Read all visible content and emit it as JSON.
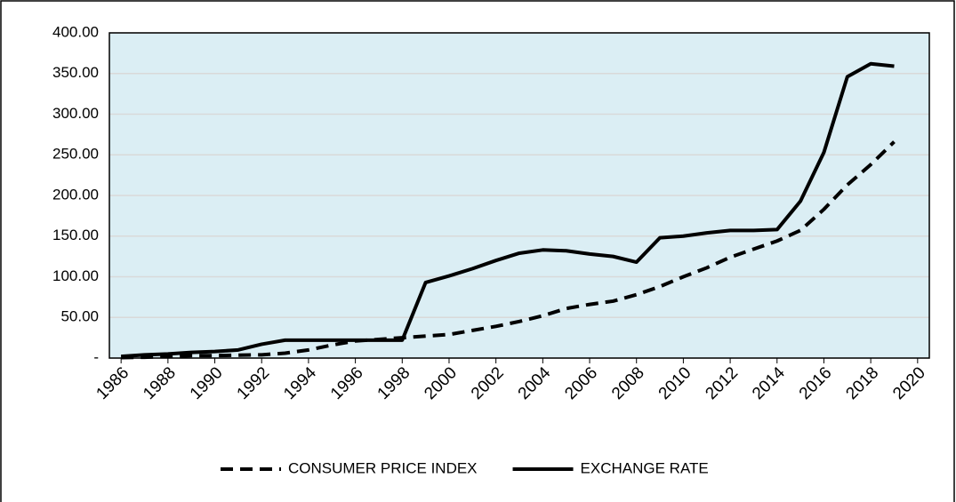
{
  "chart_data": {
    "type": "line",
    "x": [
      1986,
      1987,
      1988,
      1989,
      1990,
      1991,
      1992,
      1993,
      1994,
      1995,
      1996,
      1997,
      1998,
      1999,
      2000,
      2001,
      2002,
      2003,
      2004,
      2005,
      2006,
      2007,
      2008,
      2009,
      2010,
      2011,
      2012,
      2013,
      2014,
      2015,
      2016,
      2017,
      2018,
      2019
    ],
    "series": [
      {
        "name": "CONSUMER PRICE INDEX",
        "color": "#000000",
        "dash": true,
        "values": [
          0.5,
          1,
          2,
          3,
          3,
          3.5,
          4,
          6,
          10,
          16,
          21,
          23,
          25,
          27,
          29,
          34,
          39,
          45,
          52,
          61,
          66,
          70,
          78,
          88,
          100,
          111,
          124,
          134,
          144,
          157,
          183,
          213,
          238,
          266
        ]
      },
      {
        "name": "EXCHANGE RATE",
        "color": "#000000",
        "dash": false,
        "values": [
          2,
          4,
          5,
          7,
          8,
          10,
          17,
          22,
          22,
          22,
          22,
          22,
          22,
          93,
          101,
          110,
          120,
          129,
          133,
          132,
          128,
          125,
          118,
          148,
          150,
          154,
          157,
          157,
          158,
          193,
          253,
          346,
          362,
          359
        ]
      }
    ],
    "xlim": [
      1985.5,
      2020.5
    ],
    "xticks": [
      1986,
      1988,
      1990,
      1992,
      1994,
      1996,
      1998,
      2000,
      2002,
      2004,
      2006,
      2008,
      2010,
      2012,
      2014,
      2016,
      2018,
      2020
    ],
    "ylim": [
      0,
      400
    ],
    "yticks": [
      {
        "value": 0,
        "label": "-"
      },
      {
        "value": 50,
        "label": "50.00"
      },
      {
        "value": 100,
        "label": "100.00"
      },
      {
        "value": 150,
        "label": "150.00"
      },
      {
        "value": 200,
        "label": "200.00"
      },
      {
        "value": 250,
        "label": "250.00"
      },
      {
        "value": 300,
        "label": "300.00"
      },
      {
        "value": 350,
        "label": "350.00"
      },
      {
        "value": 400,
        "label": "400.00"
      }
    ],
    "grid": true,
    "plot_background": "#dbeef4",
    "legend": "bottom"
  }
}
